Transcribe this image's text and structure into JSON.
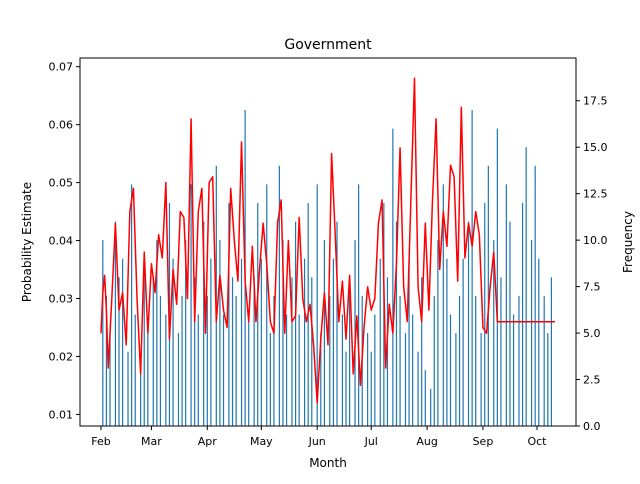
{
  "chart_data": {
    "type": "bar+line",
    "title": "Government",
    "xlabel": "Month",
    "ylabel_left": "Probability Estimate",
    "ylabel_right": "Frequency",
    "x_tick_labels": [
      "Feb",
      "Mar",
      "Apr",
      "May",
      "Jun",
      "Jul",
      "Aug",
      "Sep",
      "Oct"
    ],
    "x_ticks_day_index": [
      0,
      28,
      59,
      89,
      120,
      150,
      181,
      212,
      242
    ],
    "left_axis": {
      "ylim": [
        0.008,
        0.0715
      ],
      "ticks": [
        0.01,
        0.02,
        0.03,
        0.04,
        0.05,
        0.06,
        0.07
      ],
      "tick_labels": [
        "0.01",
        "0.02",
        "0.03",
        "0.04",
        "0.05",
        "0.06",
        "0.07"
      ]
    },
    "right_axis": {
      "ylim": [
        0,
        19.8
      ],
      "ticks": [
        0,
        2.5,
        5,
        7.5,
        10,
        12.5,
        15,
        17.5
      ],
      "tick_labels": [
        "0.0",
        "2.5",
        "5.0",
        "7.5",
        "10.0",
        "12.5",
        "15.0",
        "17.5"
      ]
    },
    "bar_color": "#1f77b4",
    "line_color": "#ff0000",
    "grid": false,
    "frequency_bars": {
      "day_index": [
        1,
        3,
        5,
        8,
        10,
        12,
        15,
        17,
        19,
        22,
        24,
        26,
        29,
        31,
        33,
        36,
        38,
        40,
        43,
        45,
        47,
        50,
        52,
        54,
        57,
        59,
        61,
        64,
        66,
        68,
        71,
        73,
        75,
        78,
        80,
        82,
        85,
        87,
        89,
        92,
        94,
        96,
        99,
        101,
        103,
        106,
        108,
        110,
        113,
        115,
        117,
        120,
        122,
        124,
        127,
        129,
        131,
        134,
        136,
        138,
        141,
        143,
        145,
        148,
        150,
        152,
        155,
        157,
        159,
        162,
        164,
        166,
        169,
        171,
        173,
        176,
        178,
        180,
        183,
        185,
        187,
        190,
        192,
        194,
        197,
        199,
        201,
        204,
        206,
        208,
        211,
        213,
        215,
        218,
        220,
        222,
        225,
        227,
        229,
        232,
        234,
        236,
        239,
        241,
        243,
        246,
        248,
        250
      ],
      "values": [
        10,
        7,
        5,
        11,
        8,
        9,
        4,
        13,
        6,
        3,
        9,
        5,
        8,
        10,
        7,
        6,
        12,
        9,
        5,
        7,
        10,
        13,
        8,
        6,
        11,
        7,
        9,
        14,
        10,
        6,
        12,
        8,
        7,
        9,
        17,
        6,
        8,
        12,
        9,
        13,
        5,
        7,
        14,
        10,
        6,
        8,
        11,
        6,
        9,
        12,
        8,
        13,
        5,
        10,
        7,
        9,
        11,
        6,
        4,
        8,
        10,
        13,
        7,
        5,
        4,
        6,
        9,
        12,
        8,
        16,
        11,
        7,
        5,
        9,
        6,
        4,
        8,
        3,
        2,
        7,
        10,
        13,
        9,
        6,
        5,
        7,
        9,
        11,
        17,
        7,
        5,
        12,
        14,
        10,
        16,
        8,
        13,
        11,
        6,
        7,
        12,
        15,
        10,
        14,
        9,
        7,
        5,
        8
      ]
    },
    "probability_line": {
      "day_index": [
        0,
        1,
        2,
        3,
        4,
        6,
        8,
        10,
        12,
        14,
        16,
        18,
        20,
        22,
        24,
        26,
        28,
        30,
        32,
        34,
        36,
        38,
        40,
        42,
        44,
        46,
        48,
        50,
        52,
        54,
        56,
        58,
        60,
        62,
        64,
        66,
        68,
        70,
        72,
        74,
        76,
        78,
        80,
        82,
        84,
        86,
        88,
        90,
        92,
        94,
        96,
        98,
        100,
        102,
        104,
        106,
        108,
        110,
        112,
        114,
        116,
        118,
        120,
        122,
        124,
        126,
        128,
        130,
        132,
        134,
        136,
        138,
        140,
        142,
        144,
        146,
        148,
        150,
        152,
        154,
        156,
        158,
        160,
        162,
        164,
        166,
        168,
        170,
        172,
        174,
        176,
        178,
        180,
        182,
        184,
        186,
        188,
        190,
        192,
        194,
        196,
        198,
        200,
        202,
        204,
        206,
        208,
        210,
        212,
        214,
        216,
        218,
        220,
        222,
        224,
        226,
        228,
        230,
        232,
        234,
        236,
        238,
        240,
        242,
        244,
        246,
        248,
        250,
        252
      ],
      "values": [
        0.024,
        0.031,
        0.034,
        0.028,
        0.018,
        0.03,
        0.043,
        0.028,
        0.031,
        0.022,
        0.045,
        0.049,
        0.03,
        0.017,
        0.038,
        0.024,
        0.036,
        0.031,
        0.041,
        0.037,
        0.05,
        0.023,
        0.035,
        0.029,
        0.045,
        0.044,
        0.03,
        0.061,
        0.026,
        0.045,
        0.049,
        0.024,
        0.05,
        0.051,
        0.026,
        0.034,
        0.028,
        0.025,
        0.049,
        0.04,
        0.033,
        0.057,
        0.033,
        0.026,
        0.039,
        0.026,
        0.035,
        0.043,
        0.036,
        0.026,
        0.024,
        0.043,
        0.047,
        0.024,
        0.04,
        0.026,
        0.027,
        0.044,
        0.03,
        0.026,
        0.029,
        0.022,
        0.012,
        0.023,
        0.031,
        0.022,
        0.055,
        0.041,
        0.026,
        0.033,
        0.023,
        0.034,
        0.017,
        0.027,
        0.015,
        0.025,
        0.032,
        0.028,
        0.03,
        0.043,
        0.047,
        0.018,
        0.029,
        0.024,
        0.036,
        0.056,
        0.032,
        0.026,
        0.047,
        0.068,
        0.032,
        0.026,
        0.043,
        0.028,
        0.047,
        0.061,
        0.035,
        0.045,
        0.039,
        0.053,
        0.051,
        0.033,
        0.063,
        0.037,
        0.043,
        0.039,
        0.045,
        0.041,
        0.025,
        0.024,
        0.032,
        0.038,
        0.026,
        0.026,
        0.026,
        0.026,
        0.026,
        0.026,
        0.026,
        0.026,
        0.026,
        0.026,
        0.026,
        0.026,
        0.026,
        0.026,
        0.026,
        0.026,
        0.026
      ]
    }
  }
}
